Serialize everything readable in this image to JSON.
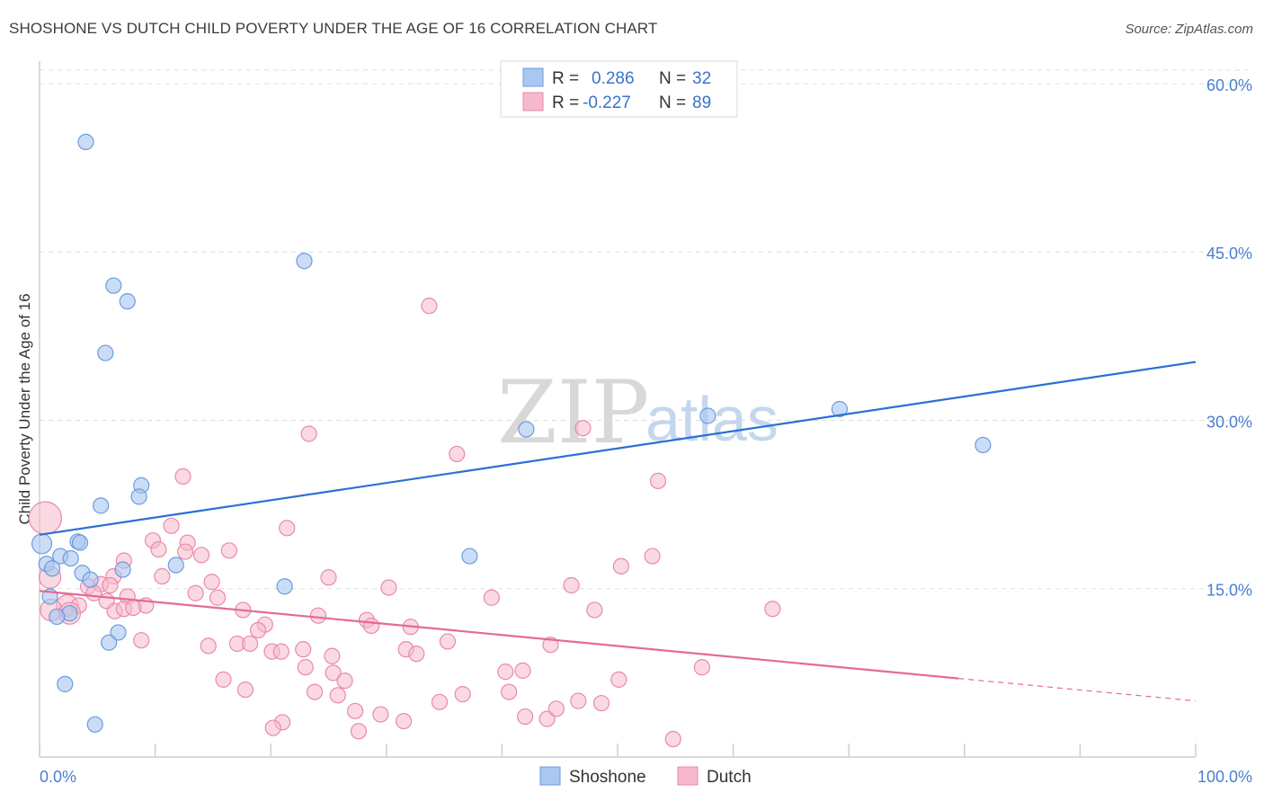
{
  "title": "SHOSHONE VS DUTCH CHILD POVERTY UNDER THE AGE OF 16 CORRELATION CHART",
  "source": "Source: ZipAtlas.com",
  "watermark": {
    "zip": "ZIP",
    "atlas": "atlas"
  },
  "colors": {
    "shoshone_fill": "#a9c7f0",
    "shoshone_stroke": "#6b9be0",
    "shoshone_line": "#2a6fd4",
    "dutch_fill": "#f6b9cc",
    "dutch_stroke": "#e98aa8",
    "dutch_line": "#e46a95",
    "tick_label": "#4a7fd0",
    "grid": "#dddddd"
  },
  "legend": {
    "rows": [
      {
        "r_label": "R =",
        "r_value": "0.286",
        "n_label": "N =",
        "n_value": "32"
      },
      {
        "r_label": "R =",
        "r_value": "-0.227",
        "n_label": "N =",
        "n_value": "89"
      }
    ]
  },
  "bottom_legend": [
    "Shoshone",
    "Dutch"
  ],
  "chart_data": {
    "type": "scatter",
    "title": "SHOSHONE VS DUTCH CHILD POVERTY UNDER THE AGE OF 16 CORRELATION CHART",
    "xlabel": "",
    "ylabel": "Child Poverty Under the Age of 16",
    "xlim": [
      0,
      100
    ],
    "ylim": [
      0,
      62
    ],
    "x_tick_labels": [
      "0.0%",
      "100.0%"
    ],
    "y_ticks": [
      15,
      30,
      45,
      60
    ],
    "y_tick_labels": [
      "15.0%",
      "30.0%",
      "45.0%",
      "60.0%"
    ],
    "grid": true,
    "legend_position": "top-center",
    "series": [
      {
        "name": "Shoshone",
        "r": 0.286,
        "n": 32,
        "trend": {
          "x": [
            0,
            100
          ],
          "y": [
            19.8,
            35.2
          ]
        },
        "points": [
          [
            4.0,
            54.8
          ],
          [
            22.9,
            44.2
          ],
          [
            6.4,
            42.0
          ],
          [
            7.6,
            40.6
          ],
          [
            5.7,
            36.0
          ],
          [
            8.8,
            24.2
          ],
          [
            8.6,
            23.2
          ],
          [
            5.3,
            22.4
          ],
          [
            0.2,
            19.0
          ],
          [
            3.3,
            19.2
          ],
          [
            3.5,
            19.1
          ],
          [
            1.8,
            17.9
          ],
          [
            2.7,
            17.7
          ],
          [
            0.6,
            17.2
          ],
          [
            11.8,
            17.1
          ],
          [
            7.2,
            16.7
          ],
          [
            3.7,
            16.4
          ],
          [
            1.1,
            16.8
          ],
          [
            4.4,
            15.8
          ],
          [
            21.2,
            15.2
          ],
          [
            0.9,
            14.3
          ],
          [
            2.6,
            12.8
          ],
          [
            1.5,
            12.5
          ],
          [
            6.8,
            11.1
          ],
          [
            6.0,
            10.2
          ],
          [
            2.2,
            6.5
          ],
          [
            4.8,
            2.9
          ],
          [
            42.1,
            29.2
          ],
          [
            57.8,
            30.4
          ],
          [
            69.2,
            31.0
          ],
          [
            81.6,
            27.8
          ],
          [
            37.2,
            17.9
          ]
        ]
      },
      {
        "name": "Dutch",
        "r": -0.227,
        "n": 89,
        "trend": {
          "x": [
            0,
            79.5,
            100
          ],
          "y": [
            14.8,
            7.0,
            5.0
          ]
        },
        "points": [
          [
            33.7,
            40.2
          ],
          [
            47.0,
            29.3
          ],
          [
            23.3,
            28.8
          ],
          [
            36.1,
            27.0
          ],
          [
            12.4,
            25.0
          ],
          [
            53.5,
            24.6
          ],
          [
            0.5,
            21.3
          ],
          [
            11.4,
            20.6
          ],
          [
            21.4,
            20.4
          ],
          [
            9.8,
            19.3
          ],
          [
            12.8,
            19.1
          ],
          [
            16.4,
            18.4
          ],
          [
            10.3,
            18.5
          ],
          [
            12.6,
            18.3
          ],
          [
            14.0,
            18.0
          ],
          [
            7.3,
            17.5
          ],
          [
            53.0,
            17.9
          ],
          [
            50.3,
            17.0
          ],
          [
            0.9,
            16.0
          ],
          [
            25.0,
            16.0
          ],
          [
            6.4,
            16.1
          ],
          [
            10.6,
            16.1
          ],
          [
            14.9,
            15.6
          ],
          [
            4.2,
            15.2
          ],
          [
            5.3,
            15.4
          ],
          [
            6.1,
            15.3
          ],
          [
            30.2,
            15.1
          ],
          [
            46.0,
            15.3
          ],
          [
            13.5,
            14.6
          ],
          [
            4.7,
            14.6
          ],
          [
            7.6,
            14.3
          ],
          [
            15.4,
            14.2
          ],
          [
            39.1,
            14.2
          ],
          [
            5.8,
            13.9
          ],
          [
            2.4,
            13.5
          ],
          [
            3.4,
            13.5
          ],
          [
            9.2,
            13.5
          ],
          [
            6.5,
            13.0
          ],
          [
            7.3,
            13.2
          ],
          [
            1.0,
            13.1
          ],
          [
            8.1,
            13.3
          ],
          [
            17.6,
            13.1
          ],
          [
            2.6,
            12.8
          ],
          [
            48.0,
            13.1
          ],
          [
            63.4,
            13.2
          ],
          [
            24.1,
            12.6
          ],
          [
            28.3,
            12.2
          ],
          [
            19.5,
            11.8
          ],
          [
            28.7,
            11.7
          ],
          [
            32.1,
            11.6
          ],
          [
            18.9,
            11.3
          ],
          [
            8.8,
            10.4
          ],
          [
            35.3,
            10.3
          ],
          [
            14.6,
            9.9
          ],
          [
            17.1,
            10.1
          ],
          [
            18.2,
            10.1
          ],
          [
            44.2,
            10.0
          ],
          [
            22.8,
            9.6
          ],
          [
            31.7,
            9.6
          ],
          [
            20.1,
            9.4
          ],
          [
            20.9,
            9.4
          ],
          [
            25.3,
            9.0
          ],
          [
            32.6,
            9.2
          ],
          [
            23.0,
            8.0
          ],
          [
            57.3,
            8.0
          ],
          [
            25.4,
            7.5
          ],
          [
            40.3,
            7.6
          ],
          [
            41.8,
            7.7
          ],
          [
            15.9,
            6.9
          ],
          [
            26.4,
            6.8
          ],
          [
            50.1,
            6.9
          ],
          [
            17.8,
            6.0
          ],
          [
            23.8,
            5.8
          ],
          [
            25.8,
            5.5
          ],
          [
            36.6,
            5.6
          ],
          [
            40.6,
            5.8
          ],
          [
            34.6,
            4.9
          ],
          [
            46.6,
            5.0
          ],
          [
            48.6,
            4.8
          ],
          [
            27.3,
            4.1
          ],
          [
            29.5,
            3.8
          ],
          [
            42.0,
            3.6
          ],
          [
            43.9,
            3.4
          ],
          [
            44.7,
            4.3
          ],
          [
            21.0,
            3.1
          ],
          [
            31.5,
            3.2
          ],
          [
            20.2,
            2.6
          ],
          [
            27.6,
            2.3
          ],
          [
            54.8,
            1.6
          ]
        ]
      }
    ]
  }
}
